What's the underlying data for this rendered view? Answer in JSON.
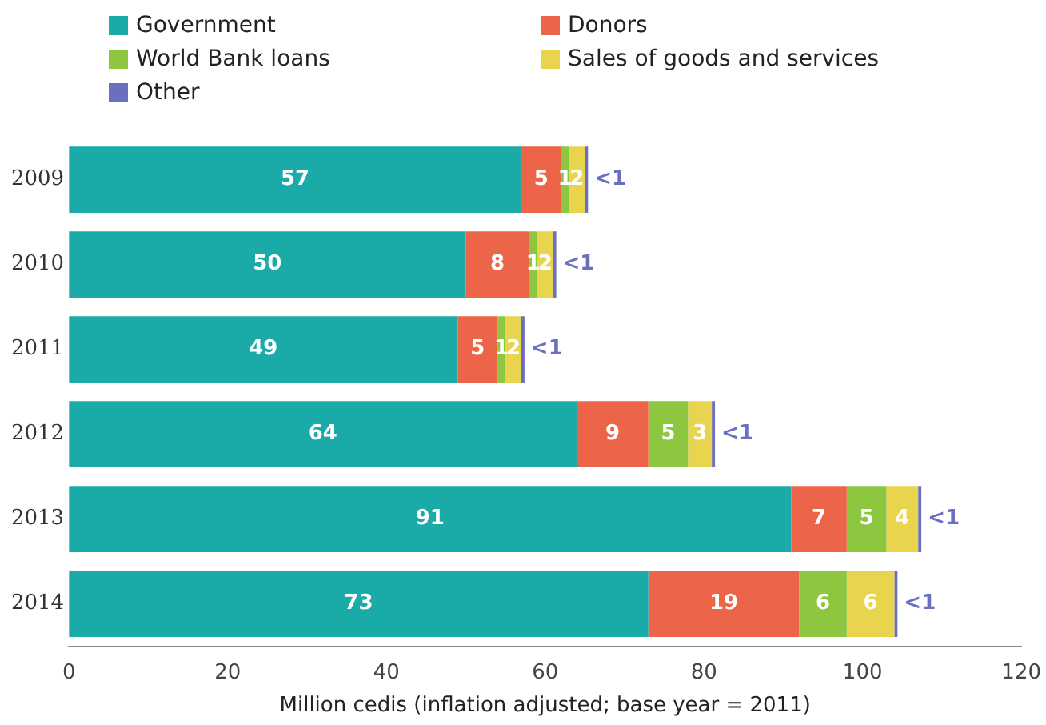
{
  "chart_data": {
    "type": "bar",
    "orientation": "horizontal",
    "stacked": true,
    "xlabel": "Million cedis (inflation adjusted; base year = 2011)",
    "categories": [
      "2009",
      "2010",
      "2011",
      "2012",
      "2013",
      "2014"
    ],
    "series": [
      {
        "name": "Government",
        "color": "#1aaba8",
        "values": [
          57,
          50,
          49,
          64,
          91,
          73
        ],
        "value_labels": [
          "57",
          "50",
          "49",
          "64",
          "91",
          "73"
        ]
      },
      {
        "name": "Donors",
        "color": "#ec6548",
        "values": [
          5,
          8,
          5,
          9,
          7,
          19
        ],
        "value_labels": [
          "5",
          "8",
          "5",
          "9",
          "7",
          "19"
        ]
      },
      {
        "name": "World Bank loans",
        "color": "#8dc63f",
        "values": [
          1,
          1,
          1,
          5,
          5,
          6
        ],
        "value_labels": [
          "1",
          "1",
          "1",
          "5",
          "5",
          "6"
        ]
      },
      {
        "name": "Sales of goods and services",
        "color": "#e8d44d",
        "values": [
          2,
          2,
          2,
          3,
          4,
          6
        ],
        "value_labels": [
          "2",
          "2",
          "2",
          "3",
          "4",
          "6"
        ]
      },
      {
        "name": "Other",
        "color": "#6a6fbf",
        "values": [
          0.4,
          0.4,
          0.4,
          0.4,
          0.4,
          0.4
        ],
        "value_labels": [
          "<1",
          "<1",
          "<1",
          "<1",
          "<1",
          "<1"
        ]
      }
    ],
    "xlim": [
      0,
      120
    ],
    "xticks": [
      0,
      20,
      40,
      60,
      80,
      100,
      120
    ],
    "grid": false,
    "legend": "top left"
  }
}
